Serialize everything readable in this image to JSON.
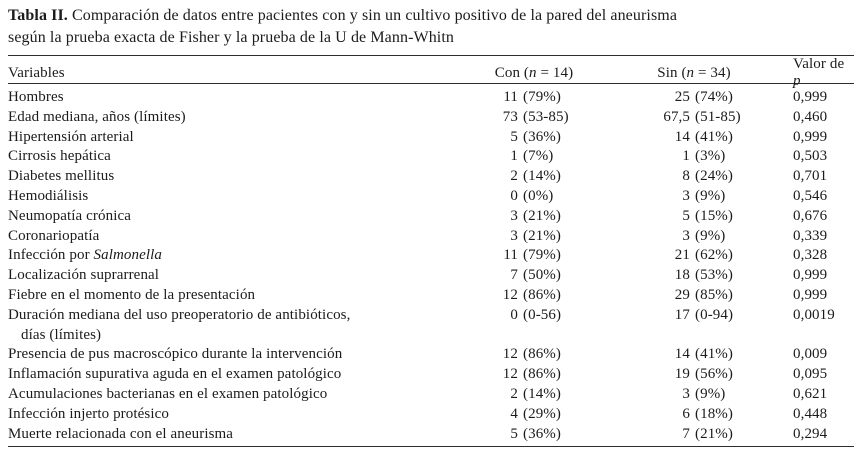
{
  "page": {
    "background_color": "#ffffff",
    "text_color": "#1b1b1b",
    "rule_color": "#2d2d2d"
  },
  "table": {
    "title": {
      "label": "Tabla II.",
      "line1": " Comparación de datos entre pacientes con y sin un cultivo positivo de la pared del aneurisma",
      "line2": "según la prueba exacta de Fisher y la prueba de la U de Mann-Whitn"
    },
    "header": {
      "variables": "Variables",
      "con": {
        "pre": "Con (",
        "symbol": "n",
        "post": " = 14)"
      },
      "sin": {
        "pre": "Sin (",
        "symbol": "n",
        "post": " = 34)"
      },
      "p": {
        "pre": "Valor de ",
        "symbol": "p"
      }
    },
    "rows": [
      {
        "variable": "Hombres",
        "con": "11 (79%)",
        "sin": "25 (74%)",
        "p": "0,999"
      },
      {
        "variable": "Edad mediana, años (límites)",
        "con": "73 (53-85)",
        "sin": "67,5 (51-85)",
        "p": "0,460"
      },
      {
        "variable": "Hipertensión arterial",
        "con": "5 (36%)",
        "sin": "14 (41%)",
        "p": "0,999"
      },
      {
        "variable": "Cirrosis hepática",
        "con": "1 (7%)",
        "sin": "1 (3%)",
        "p": "0,503"
      },
      {
        "variable": "Diabetes mellitus",
        "con": "2 (14%)",
        "sin": "8 (24%)",
        "p": "0,701"
      },
      {
        "variable": "Hemodiálisis",
        "con": "0 (0%)",
        "sin": "3 (9%)",
        "p": "0,546"
      },
      {
        "variable": "Neumopatía crónica",
        "con": "3 (21%)",
        "sin": "5 (15%)",
        "p": "0,676"
      },
      {
        "variable": "Coronariopatía",
        "con": "3 (21%)",
        "sin": "3 (9%)",
        "p": "0,339"
      },
      {
        "variable": "Infección por ",
        "variable_italic": "Salmonella",
        "con": "11 (79%)",
        "sin": "21 (62%)",
        "p": "0,328"
      },
      {
        "variable": "Localización suprarrenal",
        "con": "7 (50%)",
        "sin": "18 (53%)",
        "p": "0,999"
      },
      {
        "variable": "Fiebre en el momento de la presentación",
        "con": "12 (86%)",
        "sin": "29 (85%)",
        "p": "0,999"
      },
      {
        "variable": "Duración mediana del uso preoperatorio de antibióticos,",
        "variable_line2": "días (límites)",
        "con": "0 (0-56)",
        "sin": "17 (0-94)",
        "p": "0,0019"
      },
      {
        "variable": "Presencia de pus macroscópico durante la intervención",
        "con": "12 (86%)",
        "sin": "14 (41%)",
        "p": "0,009"
      },
      {
        "variable": "Inflamación supurativa aguda en el examen patológico",
        "con": "12 (86%)",
        "sin": "19 (56%)",
        "p": "0,095"
      },
      {
        "variable": "Acumulaciones bacterianas en el examen patológico",
        "con": "2 (14%)",
        "sin": "3 (9%)",
        "p": "0,621"
      },
      {
        "variable": "Infección injerto protésico",
        "con": "4 (29%)",
        "sin": "6 (18%)",
        "p": "0,448"
      },
      {
        "variable": "Muerte relacionada con el aneurisma",
        "con": "5 (36%)",
        "sin": "7 (21%)",
        "p": "0,294"
      }
    ]
  }
}
